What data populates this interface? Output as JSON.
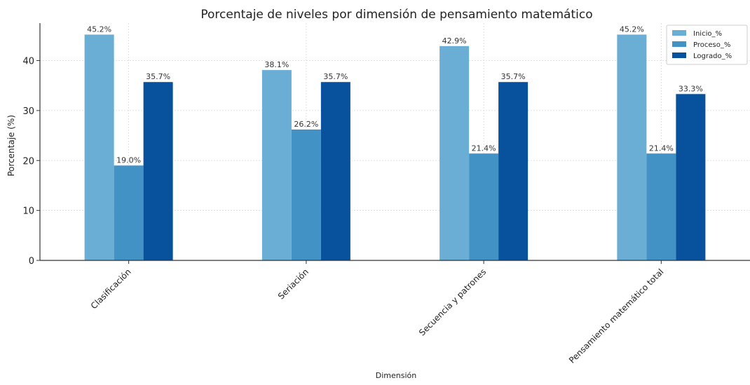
{
  "chart_data": {
    "type": "bar",
    "title": "Porcentaje de niveles por dimensión de pensamiento matemático",
    "xlabel": "Dimensión",
    "ylabel": "Porcentaje (%)",
    "ylim": [
      0,
      47.5
    ],
    "yticks": [
      0,
      10,
      20,
      30,
      40
    ],
    "grid": true,
    "legend_position": "top-right",
    "categories": [
      "Clasificación",
      "Seriación",
      "Secuencia y patrones",
      "Pensamiento matemático total"
    ],
    "series": [
      {
        "name": "Inicio_%",
        "color": "#6aaed6",
        "values": [
          45.2,
          38.1,
          42.9,
          45.2
        ],
        "labels": [
          "45.2%",
          "38.1%",
          "42.9%",
          "45.2%"
        ]
      },
      {
        "name": "Proceso_%",
        "color": "#4292c6",
        "values": [
          19.0,
          26.2,
          21.4,
          21.4
        ],
        "labels": [
          "19.0%",
          "26.2%",
          "21.4%",
          "21.4%"
        ]
      },
      {
        "name": "Logrado_%",
        "color": "#08519c",
        "values": [
          35.7,
          35.7,
          35.7,
          33.3
        ],
        "labels": [
          "35.7%",
          "35.7%",
          "35.7%",
          "33.3%"
        ]
      }
    ]
  }
}
